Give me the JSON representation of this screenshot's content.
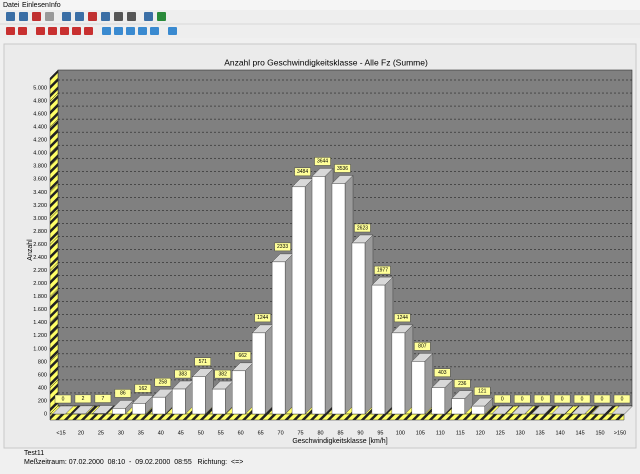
{
  "menu": [
    "Datei",
    "Einlesen",
    "Info"
  ],
  "chart_data": {
    "type": "bar3d",
    "title": "Anzahl pro Geschwindigkeitsklasse - Alle Fz (Summe)",
    "x_label": "Geschwindigkeitsklasse [km/h]",
    "y_label": "Anzahl",
    "categories": [
      "<15",
      "20",
      "25",
      "30",
      "35",
      "40",
      "45",
      "50",
      "55",
      "60",
      "65",
      "70",
      "75",
      "80",
      "85",
      "90",
      "95",
      "100",
      "105",
      "110",
      "115",
      "120",
      "125",
      "130",
      "135",
      "140",
      "145",
      "150",
      ">150"
    ],
    "values": [
      0,
      2,
      7,
      86,
      162,
      258,
      383,
      571,
      382,
      662,
      1244,
      2333,
      3484,
      3644,
      3536,
      2623,
      1977,
      1244,
      807,
      403,
      236,
      121,
      0,
      0,
      0,
      0,
      0,
      0,
      0
    ],
    "color": "#ffffff",
    "ylim": [
      0,
      5000
    ],
    "yticks": [
      0,
      200,
      400,
      600,
      800,
      {
        "value": 1000,
        "label": "1.000"
      },
      {
        "value": 1200,
        "label": "1.200"
      },
      {
        "value": 1400,
        "label": "1.400"
      },
      {
        "value": 1600,
        "label": "1.600"
      },
      {
        "value": 1800,
        "label": "1.800"
      },
      {
        "value": 2000,
        "label": "2.000"
      },
      {
        "value": 2200,
        "label": "2.200"
      },
      {
        "value": 2400,
        "label": "2.400"
      },
      {
        "value": 2600,
        "label": "2.600"
      },
      {
        "value": 2800,
        "label": "2.800"
      },
      {
        "value": 3000,
        "label": "3.000"
      },
      {
        "value": 3200,
        "label": "3.200"
      },
      {
        "value": 3400,
        "label": "3.400"
      },
      {
        "value": 3600,
        "label": "3.600"
      },
      {
        "value": 3800,
        "label": "3.800"
      },
      {
        "value": 4000,
        "label": "4.000"
      },
      {
        "value": 4200,
        "label": "4.200"
      },
      {
        "value": 4400,
        "label": "4.400"
      },
      {
        "value": 4600,
        "label": "4.600"
      },
      {
        "value": 4800,
        "label": "4.800"
      },
      {
        "value": 5000,
        "label": "5.000"
      }
    ],
    "grid": true
  },
  "footer": {
    "name": "Test11",
    "period": "Meßzeitraum: 07.02.2000  08:10  -  09.02.2000  08:55   Richtung:  <=>"
  }
}
